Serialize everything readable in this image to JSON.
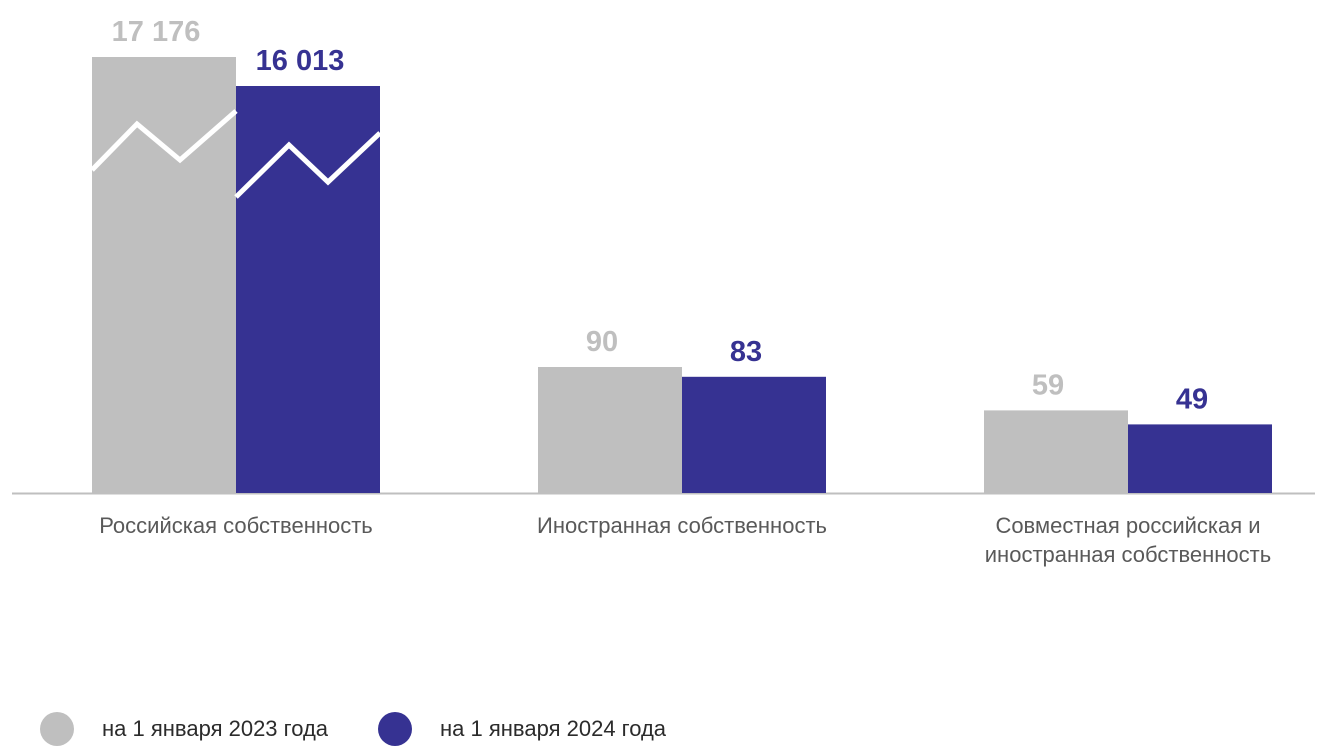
{
  "chart_data": {
    "type": "bar",
    "categories": [
      [
        "Российская собственность"
      ],
      [
        "Иностранная собственность"
      ],
      [
        "Совместная российская и",
        "иностранная собственность"
      ]
    ],
    "series": [
      {
        "name": "на 1 января 2023 года",
        "values": [
          17176,
          90,
          59
        ],
        "labels": [
          "17 176",
          "90",
          "59"
        ],
        "color": "#BFBFBF",
        "label_color": "#BFBFBF"
      },
      {
        "name": "на 1 января 2024 года",
        "values": [
          16013,
          83,
          49
        ],
        "labels": [
          "16 013",
          "83",
          "49"
        ],
        "color": "#363292",
        "label_color": "#363292"
      }
    ],
    "axis_break": {
      "category_index": 0,
      "color": "#ffffff"
    },
    "legend": {
      "position": "bottom-left"
    },
    "grid": false,
    "baseline_color": "#BFBFBF"
  }
}
